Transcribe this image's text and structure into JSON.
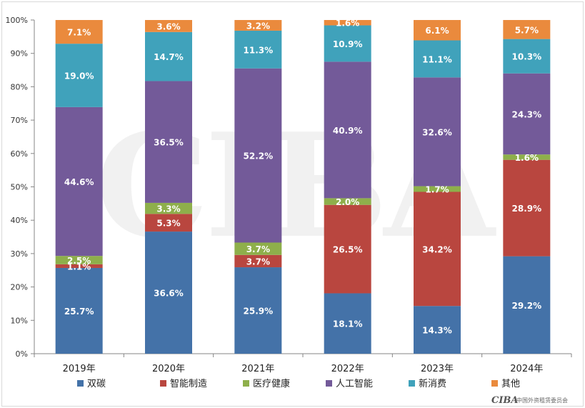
{
  "chart_data": {
    "type": "bar",
    "stacked": true,
    "percent": true,
    "categories": [
      "2019年",
      "2020年",
      "2021年",
      "2022年",
      "2023年",
      "2024年"
    ],
    "ylim": [
      0,
      100
    ],
    "yticks": [
      "0%",
      "10%",
      "20%",
      "30%",
      "40%",
      "50%",
      "60%",
      "70%",
      "80%",
      "90%",
      "100%"
    ],
    "legend_position": "bottom",
    "series": [
      {
        "name": "双碳",
        "color": "#4472a8",
        "values": [
          25.7,
          36.6,
          25.9,
          18.1,
          14.3,
          29.2
        ],
        "labels": [
          "25.7%",
          "36.6%",
          "25.9%",
          "18.1%",
          "14.3%",
          "29.2%"
        ]
      },
      {
        "name": "智能制造",
        "color": "#b9463f",
        "values": [
          1.1,
          5.3,
          3.7,
          26.5,
          34.2,
          28.9
        ],
        "labels": [
          "1.1%",
          "5.3%",
          "3.7%",
          "26.5%",
          "34.2%",
          "28.9%"
        ]
      },
      {
        "name": "医疗健康",
        "color": "#8eaf4b",
        "values": [
          2.5,
          3.3,
          3.7,
          2.0,
          1.7,
          1.6
        ],
        "labels": [
          "2.5%",
          "3.3%",
          "3.7%",
          "2.0%",
          "1.7%",
          "1.6%"
        ]
      },
      {
        "name": "人工智能",
        "color": "#735a99",
        "values": [
          44.6,
          36.5,
          52.2,
          40.9,
          32.6,
          24.3
        ],
        "labels": [
          "44.6%",
          "36.5%",
          "52.2%",
          "40.9%",
          "32.6%",
          "24.3%"
        ]
      },
      {
        "name": "新消费",
        "color": "#40a2bb",
        "values": [
          19.0,
          14.7,
          11.3,
          10.9,
          11.1,
          10.3
        ],
        "labels": [
          "19.0%",
          "14.7%",
          "11.3%",
          "10.9%",
          "11.1%",
          "10.3%"
        ]
      },
      {
        "name": "其他",
        "color": "#ea8a3d",
        "values": [
          7.1,
          3.6,
          3.2,
          1.6,
          6.1,
          5.7
        ],
        "labels": [
          "7.1%",
          "3.6%",
          "3.2%",
          "1.6%",
          "6.1%",
          "5.7%"
        ]
      }
    ]
  },
  "watermark": {
    "text": "CIBA"
  },
  "logo": {
    "mark": "CIBA",
    "caption": "中国外资租赁委员会"
  }
}
